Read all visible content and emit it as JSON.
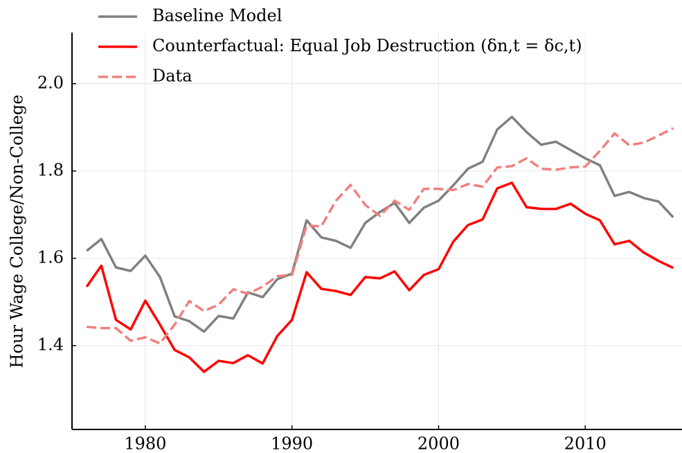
{
  "chart_data": {
    "type": "line",
    "ylabel": "Hour Wage College/Non-College",
    "x": [
      1976,
      1977,
      1978,
      1979,
      1980,
      1981,
      1982,
      1983,
      1984,
      1985,
      1986,
      1987,
      1988,
      1989,
      1990,
      1991,
      1992,
      1993,
      1994,
      1995,
      1996,
      1997,
      1998,
      1999,
      2000,
      2001,
      2002,
      2003,
      2004,
      2005,
      2006,
      2007,
      2008,
      2009,
      2010,
      2011,
      2012,
      2013,
      2014,
      2015,
      2016
    ],
    "series": [
      {
        "name": "Baseline Model",
        "color": "#808080",
        "dash": false,
        "values": [
          1.617,
          1.644,
          1.579,
          1.571,
          1.606,
          1.557,
          1.467,
          1.456,
          1.432,
          1.468,
          1.462,
          1.522,
          1.511,
          1.552,
          1.565,
          1.687,
          1.648,
          1.64,
          1.624,
          1.681,
          1.706,
          1.727,
          1.681,
          1.716,
          1.732,
          1.767,
          1.805,
          1.821,
          1.895,
          1.924,
          1.889,
          1.86,
          1.867,
          1.848,
          1.829,
          1.813,
          1.743,
          1.752,
          1.738,
          1.73,
          1.694
        ]
      },
      {
        "name": "Counterfactual: Equal Job Destruction (δn,t = δc,t)",
        "color": "#ff0000",
        "dash": false,
        "values": [
          1.535,
          1.583,
          1.459,
          1.437,
          1.503,
          1.448,
          1.39,
          1.373,
          1.34,
          1.365,
          1.36,
          1.378,
          1.359,
          1.422,
          1.459,
          1.568,
          1.53,
          1.525,
          1.516,
          1.557,
          1.554,
          1.57,
          1.527,
          1.562,
          1.575,
          1.638,
          1.676,
          1.689,
          1.76,
          1.773,
          1.717,
          1.713,
          1.713,
          1.725,
          1.702,
          1.687,
          1.632,
          1.64,
          1.613,
          1.594,
          1.578
        ]
      },
      {
        "name": "Data",
        "color": "#f08080",
        "dash": true,
        "values": [
          1.443,
          1.44,
          1.44,
          1.411,
          1.419,
          1.405,
          1.448,
          1.502,
          1.479,
          1.494,
          1.529,
          1.519,
          1.535,
          1.559,
          1.562,
          1.675,
          1.673,
          1.732,
          1.768,
          1.722,
          1.697,
          1.732,
          1.711,
          1.759,
          1.759,
          1.756,
          1.77,
          1.764,
          1.808,
          1.811,
          1.829,
          1.805,
          1.803,
          1.808,
          1.81,
          1.846,
          1.886,
          1.859,
          1.865,
          1.881,
          1.898
        ]
      }
    ],
    "xlim": [
      1975,
      2016.6
    ],
    "ylim": [
      1.208,
      2.117
    ],
    "xticks": [
      1980,
      1990,
      2000,
      2010
    ],
    "yticks": [
      {
        "value": 1.4,
        "label": "1.4"
      },
      {
        "value": 1.6,
        "label": "1.6"
      },
      {
        "value": 1.8,
        "label": "1.8"
      },
      {
        "value": 2,
        "label": "2.0"
      }
    ],
    "grid": true,
    "legend": "upper left"
  }
}
